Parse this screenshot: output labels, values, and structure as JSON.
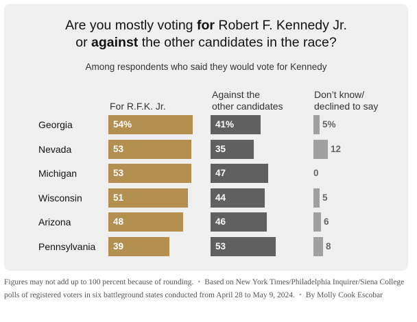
{
  "title": {
    "line1_pre": "Are you mostly voting ",
    "line1_bold": "for",
    "line1_post": " Robert F. Kennedy Jr.",
    "line2_pre": "or ",
    "line2_bold": "against",
    "line2_post": " the other candidates in the race?"
  },
  "subtitle": "Among respondents who said they would vote for Kennedy",
  "colors": {
    "for": "#b3904f",
    "against": "#606060",
    "dont_know": "#a0a0a0"
  },
  "chart_data": {
    "type": "bar",
    "categories": [
      "Georgia",
      "Nevada",
      "Michigan",
      "Wisconsin",
      "Arizona",
      "Pennsylvania"
    ],
    "series": [
      {
        "name": "For R.F.K. Jr.",
        "values": [
          54,
          53,
          53,
          51,
          48,
          39
        ],
        "labels": [
          "54%",
          "53",
          "53",
          "51",
          "48",
          "39"
        ]
      },
      {
        "name_line1": "Against the",
        "name_line2": "other candidates",
        "values": [
          41,
          35,
          47,
          44,
          46,
          53
        ],
        "labels": [
          "41%",
          "35",
          "47",
          "44",
          "46",
          "53"
        ]
      },
      {
        "name_line1": "Don’t know/",
        "name_line2": "declined to say",
        "values": [
          5,
          12,
          0,
          5,
          6,
          8
        ],
        "labels": [
          "5%",
          "12",
          "0",
          "5",
          "6",
          "8"
        ]
      }
    ]
  },
  "notes": {
    "rounding": "Figures may not add up to 100 percent because of rounding.",
    "source": "Based on New York Times/Philadelphia Inquirer/Siena College polls of registered voters in six battleground states conducted from April 28 to May 9, 2024.",
    "byline": "By Molly Cook Escobar"
  }
}
